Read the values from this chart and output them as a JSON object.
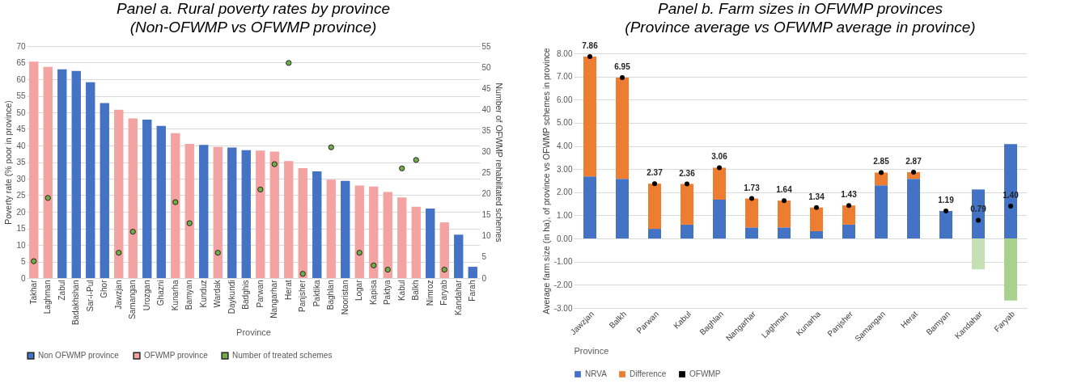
{
  "chart_data": [
    {
      "type": "bar",
      "title": "Panel a. Rural poverty rates by province",
      "subtitle": "(Non-OFWMP vs OFWMP province)",
      "xlabel": "Province",
      "ylabel": "Poverty rate (% poor in province)",
      "y2label": "Number of OFWMP rehabilitated schemes",
      "categories": [
        "Takhar",
        "Laghman",
        "Zabul",
        "Badakhshan",
        "Sar-i-Pul",
        "Ghor",
        "Jawzjan",
        "Samangan",
        "Urozgan",
        "Ghazni",
        "Kunarha",
        "Bamyan",
        "Kunduz",
        "Wardak",
        "Daykundi",
        "Badghis",
        "Parwan",
        "Nangarhar",
        "Herat",
        "Panjsher",
        "Paktika",
        "Baghlan",
        "Nooristan",
        "Logar",
        "Kapisa",
        "Paktya",
        "Kabul",
        "Balkh",
        "Nimroz",
        "Faryab",
        "Kandahar",
        "Farah"
      ],
      "series": [
        {
          "name": "Non OFWMP province",
          "color": "#4472c4",
          "values": [
            null,
            null,
            63.0,
            62.5,
            59.1,
            52.8,
            null,
            null,
            47.8,
            45.9,
            null,
            null,
            40.2,
            null,
            39.4,
            38.6,
            null,
            null,
            null,
            null,
            32.2,
            null,
            29.3,
            null,
            null,
            null,
            null,
            null,
            21.0,
            null,
            13.1,
            3.4
          ]
        },
        {
          "name": "OFWMP province",
          "color": "#f4a3a3",
          "values": [
            65.3,
            63.7,
            null,
            null,
            null,
            null,
            50.8,
            48.2,
            null,
            null,
            43.7,
            40.5,
            null,
            39.6,
            null,
            null,
            38.5,
            38.2,
            35.3,
            33.2,
            null,
            29.7,
            null,
            27.9,
            27.6,
            26.0,
            24.3,
            21.5,
            null,
            16.8,
            null,
            null
          ]
        },
        {
          "name": "Number of treated schemes",
          "type": "scatter",
          "axis": "y2",
          "color": "#70ad47",
          "values": [
            4,
            19,
            null,
            null,
            null,
            null,
            6,
            11,
            null,
            null,
            18,
            13,
            null,
            6,
            null,
            null,
            21,
            27,
            51,
            1,
            null,
            31,
            null,
            6,
            3,
            2,
            26,
            28,
            null,
            2,
            null,
            null
          ]
        }
      ],
      "ylim": [
        0,
        70
      ],
      "yticks": [
        0,
        5,
        10,
        15,
        20,
        25,
        30,
        35,
        40,
        45,
        50,
        55,
        60,
        65,
        70
      ],
      "y2lim": [
        0,
        55
      ],
      "y2ticks": [
        0,
        5,
        10,
        15,
        20,
        25,
        30,
        35,
        40,
        45,
        50,
        55
      ],
      "grid": "y",
      "legend": "bottom",
      "marker": "circle"
    },
    {
      "type": "bar",
      "title": "Panel b. Farm sizes in OFWMP provinces",
      "subtitle": "(Province average vs OFWMP average in province)",
      "xlabel": "Province",
      "ylabel": "Average farm size (in ha), of province vs OFWMP schemes in province",
      "categories": [
        "Jawzjan",
        "Balkh",
        "Parwan",
        "Kabul",
        "Baghlan",
        "Nangarhar",
        "Laghman",
        "Kunarha",
        "Panjsher",
        "Samangan",
        "Herat",
        "Bamyan",
        "Kandahar",
        "Faryab"
      ],
      "stacked": true,
      "series": [
        {
          "name": "NRVA",
          "color": "#4472c4",
          "values": [
            2.68,
            2.58,
            0.42,
            0.6,
            1.68,
            0.48,
            0.48,
            0.32,
            0.6,
            2.3,
            2.58,
            1.19,
            2.12,
            4.08
          ]
        },
        {
          "name": "Difference",
          "color": "#ed7d31",
          "colors": [
            "#ed7d31",
            "#ed7d31",
            "#ed7d31",
            "#ed7d31",
            "#ed7d31",
            "#ed7d31",
            "#ed7d31",
            "#ed7d31",
            "#ed7d31",
            "#ed7d31",
            "#ed7d31",
            "#ed7d31",
            "#c5e0b4",
            "#a9d18e"
          ],
          "values": [
            5.18,
            4.37,
            1.95,
            1.76,
            1.38,
            1.25,
            1.16,
            1.02,
            0.83,
            0.55,
            0.29,
            0,
            -1.33,
            -2.68
          ]
        },
        {
          "name": "OFWMP",
          "type": "scatter",
          "color": "#000000",
          "values": [
            7.86,
            6.95,
            2.37,
            2.36,
            3.06,
            1.73,
            1.64,
            1.34,
            1.43,
            2.85,
            2.87,
            1.19,
            0.79,
            1.4
          ],
          "value_labels": [
            "7.86",
            "6.95",
            "2.37",
            "2.36",
            "3.06",
            "1.73",
            "1.64",
            "1.34",
            "1.43",
            "2.85",
            "2.87",
            "1.19",
            "0.79",
            "1.40"
          ]
        }
      ],
      "ylim": [
        -3,
        8
      ],
      "yticks": [
        {
          "value": -3,
          "label": "-3.00"
        },
        {
          "value": -2,
          "label": "-2.00"
        },
        {
          "value": -1,
          "label": "-1.00"
        },
        {
          "value": 0,
          "label": "0.00"
        },
        {
          "value": 1,
          "label": "1.00"
        },
        {
          "value": 2,
          "label": "2.00"
        },
        {
          "value": 3,
          "label": "3.00"
        },
        {
          "value": 4,
          "label": "4.00"
        },
        {
          "value": 5,
          "label": "5.00"
        },
        {
          "value": 6,
          "label": "6.00"
        },
        {
          "value": 7,
          "label": "7.00"
        },
        {
          "value": 8,
          "label": "8.00"
        }
      ],
      "grid": "y",
      "legend": "bottom",
      "marker": "circle"
    }
  ]
}
